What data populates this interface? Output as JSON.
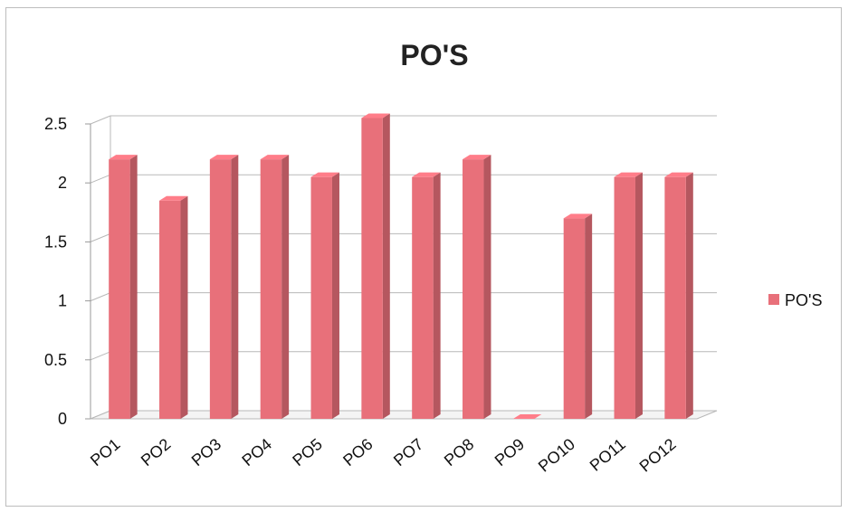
{
  "chart_data": {
    "type": "bar",
    "title": "PO'S",
    "categories": [
      "PO1",
      "PO2",
      "PO3",
      "PO4",
      "PO5",
      "PO6",
      "PO7",
      "PO8",
      "PO9",
      "PO10",
      "PO11",
      "PO12"
    ],
    "series": [
      {
        "name": "PO'S",
        "values": [
          2.2,
          1.85,
          2.2,
          2.2,
          2.05,
          2.55,
          2.05,
          2.2,
          0,
          1.7,
          2.05,
          2.05
        ],
        "color": "#e8707a"
      }
    ],
    "ylim": [
      0,
      2.5
    ],
    "yticks": [
      "0",
      "0.5",
      "1",
      "1.5",
      "2",
      "2.5"
    ],
    "xlabel": "",
    "ylabel": "",
    "grid": true,
    "legend_position": "right",
    "style": "3d-column"
  }
}
